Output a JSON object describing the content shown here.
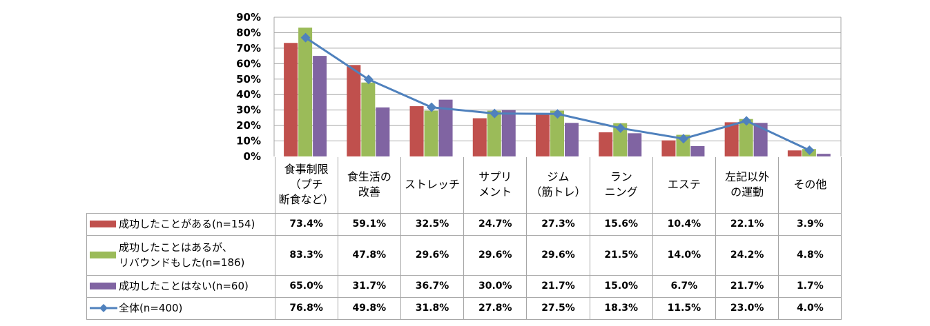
{
  "chart_data": {
    "type": "bar",
    "title": "",
    "xlabel": "",
    "ylabel": "",
    "ylim": [
      0,
      90
    ],
    "y_ticks": [
      "0%",
      "10%",
      "20%",
      "30%",
      "40%",
      "50%",
      "60%",
      "70%",
      "80%",
      "90%"
    ],
    "grid": true,
    "legend_placement": "data-table-left",
    "categories": [
      "食事制限\n（プチ\n断食など）",
      "食生活の\n改善",
      "ストレッチ",
      "サプリ\nメント",
      "ジム\n（筋トレ）",
      "ラン\nニング",
      "エステ",
      "左記以外\nの運動",
      "その他"
    ],
    "series": [
      {
        "name": "成功したことがある(n=154)",
        "type": "bar",
        "color": "#c0504d",
        "values": [
          73.4,
          59.1,
          32.5,
          24.7,
          27.3,
          15.6,
          10.4,
          22.1,
          3.9
        ],
        "labels": [
          "73.4%",
          "59.1%",
          "32.5%",
          "24.7%",
          "27.3%",
          "15.6%",
          "10.4%",
          "22.1%",
          "3.9%"
        ]
      },
      {
        "name": "成功したことはあるが、\nリバウンドもした(n=186)",
        "type": "bar",
        "color": "#9bbb59",
        "values": [
          83.3,
          47.8,
          29.6,
          29.6,
          29.6,
          21.5,
          14.0,
          24.2,
          4.8
        ],
        "labels": [
          "83.3%",
          "47.8%",
          "29.6%",
          "29.6%",
          "29.6%",
          "21.5%",
          "14.0%",
          "24.2%",
          "4.8%"
        ]
      },
      {
        "name": "成功したことはない(n=60)",
        "type": "bar",
        "color": "#8064a2",
        "values": [
          65.0,
          31.7,
          36.7,
          30.0,
          21.7,
          15.0,
          6.7,
          21.7,
          1.7
        ],
        "labels": [
          "65.0%",
          "31.7%",
          "36.7%",
          "30.0%",
          "21.7%",
          "15.0%",
          "6.7%",
          "21.7%",
          "1.7%"
        ]
      },
      {
        "name": "全体(n=400)",
        "type": "line",
        "color": "#4f81bd",
        "values": [
          76.8,
          49.8,
          31.8,
          27.8,
          27.5,
          18.3,
          11.5,
          23.0,
          4.0
        ],
        "labels": [
          "76.8%",
          "49.8%",
          "31.8%",
          "27.8%",
          "27.5%",
          "18.3%",
          "11.5%",
          "23.0%",
          "4.0%"
        ]
      }
    ]
  }
}
